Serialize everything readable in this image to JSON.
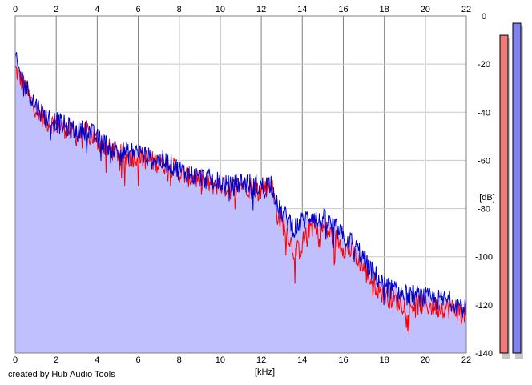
{
  "chart_data": {
    "type": "area",
    "xlabel": "[kHz]",
    "ylabel": "[dB]",
    "xlim": [
      0,
      22
    ],
    "ylim": [
      -140,
      0
    ],
    "x_ticks": [
      "0",
      "2",
      "4",
      "6",
      "8",
      "10",
      "12",
      "14",
      "16",
      "18",
      "20",
      "22"
    ],
    "y_ticks": [
      "0",
      "-20",
      "-40",
      "-60",
      "-80",
      "-100",
      "-120",
      "-140"
    ],
    "grid": true,
    "series": [
      {
        "color": "#ff0000",
        "x": [
          0,
          0.25,
          0.5,
          0.75,
          1,
          1.5,
          2,
          2.5,
          3,
          3.5,
          4,
          4.5,
          5,
          5.5,
          6,
          6.5,
          7,
          7.5,
          8,
          8.5,
          9,
          9.5,
          10,
          10.5,
          11,
          11.5,
          12,
          12.5,
          12.8,
          13,
          13.3,
          13.6,
          13.9,
          14.2,
          14.5,
          14.8,
          15,
          15.3,
          15.6,
          16,
          16.4,
          16.8,
          17.2,
          17.6,
          18,
          18.5,
          19,
          19.5,
          20,
          20.5,
          21,
          21.5,
          22
        ],
        "y": [
          -22,
          -26,
          -30,
          -35,
          -38,
          -44,
          -45,
          -47,
          -50,
          -48,
          -52,
          -55,
          -57,
          -59,
          -58,
          -60,
          -61,
          -62,
          -65,
          -67,
          -68,
          -70,
          -70,
          -72,
          -70,
          -71,
          -72,
          -70,
          -83,
          -86,
          -90,
          -98,
          -97,
          -90,
          -86,
          -92,
          -88,
          -90,
          -92,
          -96,
          -98,
          -102,
          -108,
          -112,
          -116,
          -118,
          -120,
          -120,
          -120,
          -121,
          -121,
          -122,
          -124
        ]
      },
      {
        "color": "#0000cc",
        "x": [
          0,
          0.25,
          0.5,
          0.75,
          1,
          1.5,
          2,
          2.5,
          3,
          3.5,
          4,
          4.5,
          5,
          5.5,
          6,
          6.5,
          7,
          7.5,
          8,
          8.5,
          9,
          9.5,
          10,
          10.5,
          11,
          11.5,
          12,
          12.5,
          12.8,
          13,
          13.3,
          13.6,
          13.9,
          14.2,
          14.5,
          14.8,
          15,
          15.3,
          15.6,
          16,
          16.4,
          16.8,
          17.2,
          17.6,
          18,
          18.5,
          19,
          19.5,
          20,
          20.5,
          21,
          21.5,
          22
        ],
        "y": [
          -18,
          -24,
          -29,
          -33,
          -37,
          -42,
          -44,
          -46,
          -48,
          -47,
          -51,
          -54,
          -56,
          -57,
          -56,
          -59,
          -60,
          -61,
          -64,
          -66,
          -67,
          -68,
          -69,
          -71,
          -69,
          -70,
          -71,
          -69,
          -80,
          -82,
          -84,
          -88,
          -86,
          -84,
          -82,
          -86,
          -84,
          -86,
          -88,
          -92,
          -94,
          -98,
          -104,
          -108,
          -112,
          -114,
          -116,
          -116,
          -117,
          -118,
          -118,
          -119,
          -122
        ]
      }
    ],
    "fill_color": "#c0c0ff",
    "level_meters": [
      {
        "color": "#ee7a7a",
        "level_db": -8
      },
      {
        "color": "#8080ee",
        "level_db": -3
      }
    ]
  },
  "footer": {
    "credit": "created by Hub Audio Tools"
  }
}
